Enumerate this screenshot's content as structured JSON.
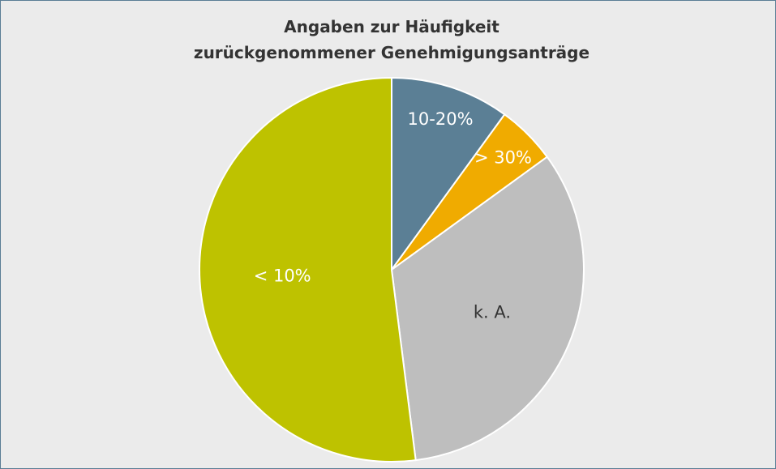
{
  "chart_data": {
    "type": "pie",
    "title": [
      "Angaben zur Häufigkeit",
      "zurückgenommener Genehmigungsanträge"
    ],
    "categories": [
      "10-20%",
      "> 30%",
      "k. A.",
      "< 10%"
    ],
    "values": [
      10,
      5,
      33,
      52
    ],
    "colors": [
      "#5b7f95",
      "#f0ab00",
      "#bebebe",
      "#bec200"
    ],
    "label_colors": [
      "#ffffff",
      "#ffffff",
      "#333333",
      "#ffffff"
    ]
  }
}
